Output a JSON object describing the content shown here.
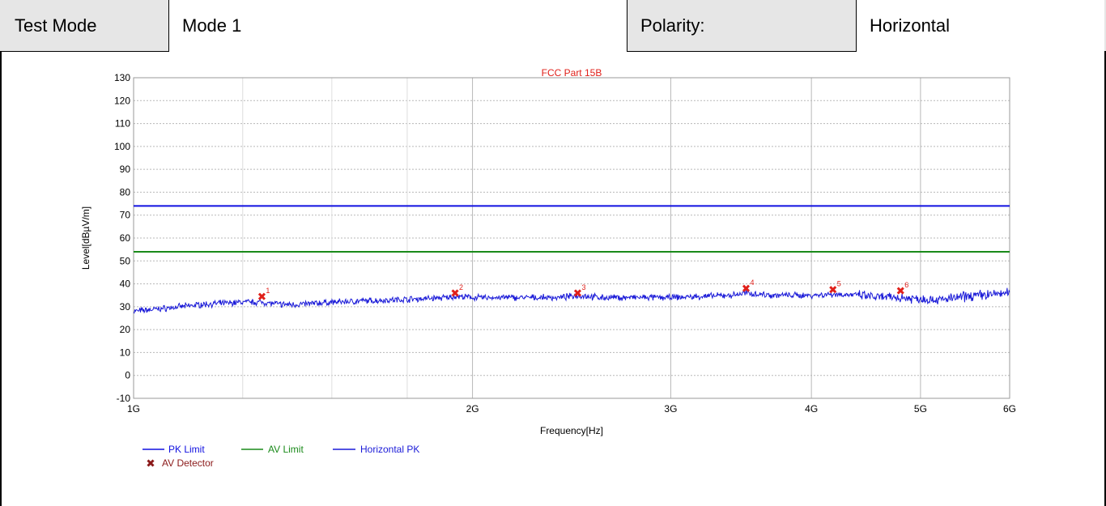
{
  "header": {
    "test_mode_label": "Test Mode",
    "test_mode_value": "Mode 1",
    "polarity_label": "Polarity:",
    "polarity_value": "Horizontal"
  },
  "colors": {
    "pk_limit": "#1010e0",
    "av_limit": "#1a8a1a",
    "horizontal_pk": "#1a1ad8",
    "av_detector": "#e0201a",
    "legend_marker": "#8b1a1a",
    "header_bg": "#e6e6e6"
  },
  "chart_data": {
    "type": "line",
    "title": "FCC Part 15B",
    "xlabel": "Frequency[Hz]",
    "ylabel": "Level[dBµV/m]",
    "x_scale": "log",
    "xlim": [
      1000000000,
      6000000000
    ],
    "ylim": [
      -10,
      130
    ],
    "x_ticks": [
      {
        "value": 1000000000,
        "label": "1G"
      },
      {
        "value": 2000000000,
        "label": "2G"
      },
      {
        "value": 3000000000,
        "label": "3G"
      },
      {
        "value": 4000000000,
        "label": "4G"
      },
      {
        "value": 5000000000,
        "label": "5G"
      },
      {
        "value": 6000000000,
        "label": "6G"
      }
    ],
    "y_ticks": [
      -10,
      0,
      10,
      20,
      30,
      40,
      50,
      60,
      70,
      80,
      90,
      100,
      110,
      120,
      130
    ],
    "grid": true,
    "legend_placement": "bottom-left",
    "series": [
      {
        "name": "PK Limit",
        "kind": "line",
        "x": [
          1000000000,
          6000000000
        ],
        "y": [
          74,
          74
        ]
      },
      {
        "name": "AV Limit",
        "kind": "line",
        "x": [
          1000000000,
          6000000000
        ],
        "y": [
          54,
          54
        ]
      },
      {
        "name": "Horizontal PK",
        "kind": "trace",
        "x": [
          1000000000,
          1050000000,
          1100000000,
          1150000000,
          1200000000,
          1250000000,
          1300000000,
          1350000000,
          1400000000,
          1450000000,
          1500000000,
          1600000000,
          1700000000,
          1800000000,
          1900000000,
          1930000000,
          2000000000,
          2100000000,
          2200000000,
          2300000000,
          2400000000,
          2480000000,
          2600000000,
          2800000000,
          3000000000,
          3200000000,
          3400000000,
          3500000000,
          3700000000,
          4000000000,
          4200000000,
          4400000000,
          4600000000,
          4800000000,
          5000000000,
          5200000000,
          5400000000,
          5600000000,
          5800000000,
          6000000000
        ],
        "y": [
          28,
          29,
          30,
          31,
          31.5,
          32,
          32,
          31,
          31,
          31.5,
          32,
          32.5,
          33,
          33.5,
          34,
          34.5,
          34,
          34,
          34,
          34,
          34,
          35,
          34,
          34,
          34,
          34.5,
          35,
          36,
          35,
          35,
          35.5,
          35,
          34,
          34,
          33.5,
          33,
          34,
          35,
          35.5,
          36
        ]
      },
      {
        "name": "AV Detector",
        "kind": "marker",
        "points": [
          {
            "label": "1",
            "x": 1300000000,
            "y": 34.5
          },
          {
            "label": "2",
            "x": 1930000000,
            "y": 36
          },
          {
            "label": "3",
            "x": 2480000000,
            "y": 36
          },
          {
            "label": "4",
            "x": 3500000000,
            "y": 38
          },
          {
            "label": "5",
            "x": 4180000000,
            "y": 37.5
          },
          {
            "label": "6",
            "x": 4800000000,
            "y": 37
          }
        ]
      }
    ]
  }
}
